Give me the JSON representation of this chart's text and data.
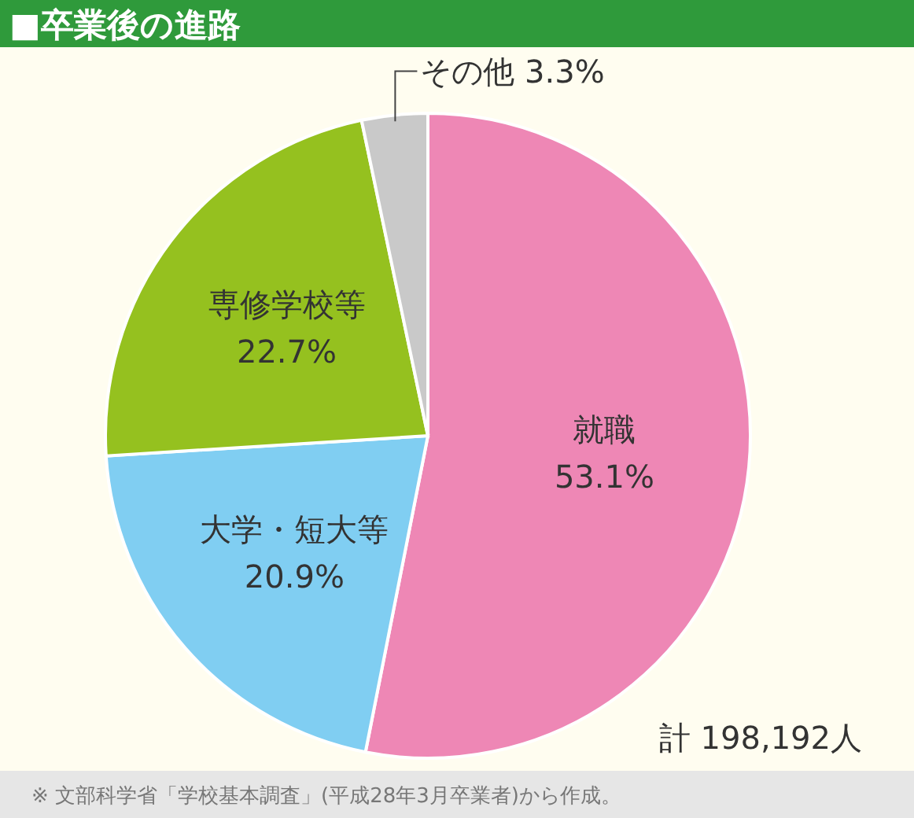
{
  "chart_data": {
    "type": "pie",
    "title": "■卒業後の進路",
    "categories": [
      "就職",
      "大学・短大等",
      "専修学校等",
      "その他"
    ],
    "values": [
      53.1,
      20.9,
      22.7,
      3.3
    ],
    "colors": [
      "#ee87b5",
      "#80cef2",
      "#95c11f",
      "#c9c9c9"
    ],
    "value_labels": [
      "53.1%",
      "20.9%",
      "22.7%",
      "3.3%"
    ],
    "annotations": [
      "計 198,192人",
      "※ 文部科学省「学校基本調査」(平成28年3月卒業者)から作成。"
    ]
  }
}
